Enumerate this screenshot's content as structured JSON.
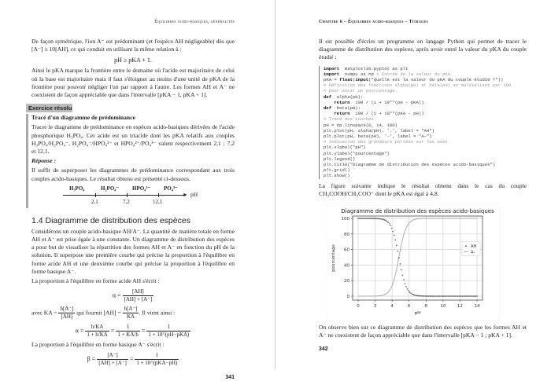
{
  "left_page": {
    "header": "Équilibres acido-basiques, généralités",
    "para1": "De façon symétrique, l'ion A⁻ est prédominant (et l'espèce AH négligeable) dès que [A⁻] ≥ 10[AH], ce qui conduit en utilisant la même relation à :",
    "eq1": "pH ≥ pKA + 1.",
    "para2": "Ainsi le pKA marque la frontière entre le domaine où l'acide est majoritaire de celui où la base est majoritaire mais il faut s'éloigner au moins d'une unité de pKA de la frontière pour pouvoir négliger l'un par rapport à l'autre. Les formes AH et A⁻ ne coexistent de façon appréciable que dans l'intervalle [pKA − 1, pKA + 1].",
    "exercise": {
      "label": "Exercice résolu",
      "title": "Tracé d'un diagramme de prédominance",
      "statement": "Tracer le diagramme de prédominance en espèces acido-basiques dérivées de l'acide phosphorique H₃PO₄. Cet acide est un triacide dont les pKA relatifs aux couples H₃PO₄/H₂PO₄⁻, H₂PO₄⁻/HPO₄²⁻ et HPO₄²⁻/PO₄³⁻ valent respectivement 2,1 ; 7,2 et 12,1.",
      "answer_label": "Réponse :",
      "answer": "Il suffit de superposer les diagrammes de prédominance correspondant aux trois couples acido-basiques. Le résultat obtenu est présenté ci-dessous.",
      "diagram": {
        "species": [
          "H₃PO₄",
          "H₂PO₄⁻",
          "HPO₄²⁻",
          "PO₄³⁻"
        ],
        "ticks": [
          "2,1",
          "7,2",
          "12,1"
        ],
        "axis": "pH"
      }
    },
    "section_title": "1.4   Diagramme de distribution des espèces",
    "para3": "Considérons un couple acido-basique AH/A⁻. La quantité de matière totale en forme AH et A⁻ est prise égale à une constante. Un diagramme de distribution des espèces a pour but de visualiser la répartition des formes AH et A⁻ en fonction du pH de la solution. Il superpose une première courbe qui précise la proportion à l'équilibre en forme acide AH et une deuxième courbe qui précise la proportion à l'équilibre en forme basique A⁻.",
    "para4": "La proportion à l'équilibre en forme acide AH s'écrit :",
    "eq_alpha": {
      "lhs": "α =",
      "num": "[AH]",
      "den": "[AH] + [A⁻]"
    },
    "avec": {
      "a": "avec KA =",
      "n1": "h[A⁻]",
      "d1": "[AH]",
      "b": "qui fournit [AH] =",
      "n2": "h[A⁻]",
      "d2": "KA",
      "c": ". Il vient ainsi :"
    },
    "eq_alpha2": {
      "lhs": "α =",
      "n1": "h/KA",
      "d1": "1 + h/KA",
      "n2": "1",
      "d2": "1 + KA/h",
      "n3": "1",
      "d3": "1 + 10^(pH−pKA)"
    },
    "para5": "La proportion à l'équilibre en forme basique A⁻ s'écrit :",
    "eq_beta": {
      "lhs": "β =",
      "n1": "[A⁻]",
      "d1": "[AH] + [A⁻]",
      "n2": "1",
      "d2": "1 + 10^(pKA−pH)"
    },
    "page_number": "341"
  },
  "right_page": {
    "header": "Chapitre 6 – Équilibres acido-basiques – Titrages",
    "para1": "Il est possible d'écrire un programme en langage Python qui permet de tracer le diagramme de distribution des espèces, après avoir entré la valeur du pKA du couple étudié :",
    "code": [
      [
        [
          "k",
          "import"
        ],
        [
          "",
          "  matplotlib.pyplot as plt"
        ]
      ],
      [
        [
          "k",
          "import"
        ],
        [
          "",
          "  numpy as np "
        ],
        [
          "c",
          "# Entrée de la valeur du pKA."
        ]
      ],
      [
        [
          "",
          "pKA = "
        ],
        [
          "k",
          "float"
        ],
        [
          "",
          "("
        ],
        [
          "k",
          "input"
        ],
        [
          "",
          "(\"Quelle est la valeur du pKA du couple étudié ?\"))"
        ]
      ],
      [
        [
          "c",
          "# Définition des fonctions alpha(pH) et beta(pH) en multipliant par 100"
        ]
      ],
      [
        [
          "c",
          "# pour avoir un pourcentage."
        ]
      ],
      [
        [
          "k",
          "def"
        ],
        [
          "",
          "  alpha(pH):"
        ]
      ],
      [
        [
          "",
          "    "
        ],
        [
          "k",
          "return"
        ],
        [
          "",
          "  100 / (1 + 10**(pH - pKA))"
        ]
      ],
      [
        [
          "k",
          "def"
        ],
        [
          "",
          "  beta(pH):"
        ]
      ],
      [
        [
          "",
          "    "
        ],
        [
          "k",
          "return"
        ],
        [
          "",
          "  100 / (1 + 10**(pKA - pH))"
        ]
      ],
      [
        [
          "c",
          "# Tracé des courbes."
        ]
      ],
      [
        [
          "",
          "pH = np.linspace(0, 14, 100)"
        ]
      ],
      [
        [
          "",
          "plt.plot(pH, alpha(pH), '.', label = \"AH\")"
        ]
      ],
      [
        [
          "",
          "plt.plot(pH, beta(pH), '-', label = \"A-\")"
        ]
      ],
      [
        [
          "c",
          "# Indication des grandeurs portées sur les axes."
        ]
      ],
      [
        [
          "",
          "plt.xlabel(\"pH\")"
        ]
      ],
      [
        [
          "",
          "plt.ylabel(\"pourcentage\")"
        ]
      ],
      [
        [
          "",
          "plt.legend()"
        ]
      ],
      [
        [
          "",
          "plt.title(\"Diagramme de distribution des espèces acido-basiques\")"
        ]
      ],
      [
        [
          "",
          "plt.grid()"
        ]
      ],
      [
        [
          "",
          "plt.show()"
        ]
      ]
    ],
    "para2": "La figure suivante indique le résultat obtenu dans le cas du couple CH₃COOH/CH₃COO⁻ dont le pKA est égal à 4,8.",
    "para3": "On observe bien sur ce diagramme de distribution des espèces que les formes AH et A⁻ ne coexistent de façon appréciable que dans l'intervalle [pKA − 1 ; pKA + 1].",
    "page_number": "342"
  },
  "chart_data": {
    "type": "line",
    "title": "Diagramme de distribution des espèces acido-basiques",
    "xlabel": "pH",
    "ylabel": "pourcentage",
    "xlim": [
      0,
      14
    ],
    "ylim": [
      0,
      100
    ],
    "xticks": [
      0,
      2,
      4,
      6,
      8,
      10,
      12,
      14
    ],
    "yticks": [
      0,
      20,
      40,
      60,
      80,
      100
    ],
    "grid": true,
    "legend_position": "right",
    "pKa": 4.8,
    "x_points": 100,
    "series": [
      {
        "name": "AH",
        "style": "dots",
        "formula": "100/(1+10^(pH-pKA))"
      },
      {
        "name": "A-",
        "style": "line",
        "formula": "100/(1+10^(pKA-pH))"
      }
    ],
    "colors": {
      "AH": "#555555",
      "A-": "#999999"
    }
  }
}
